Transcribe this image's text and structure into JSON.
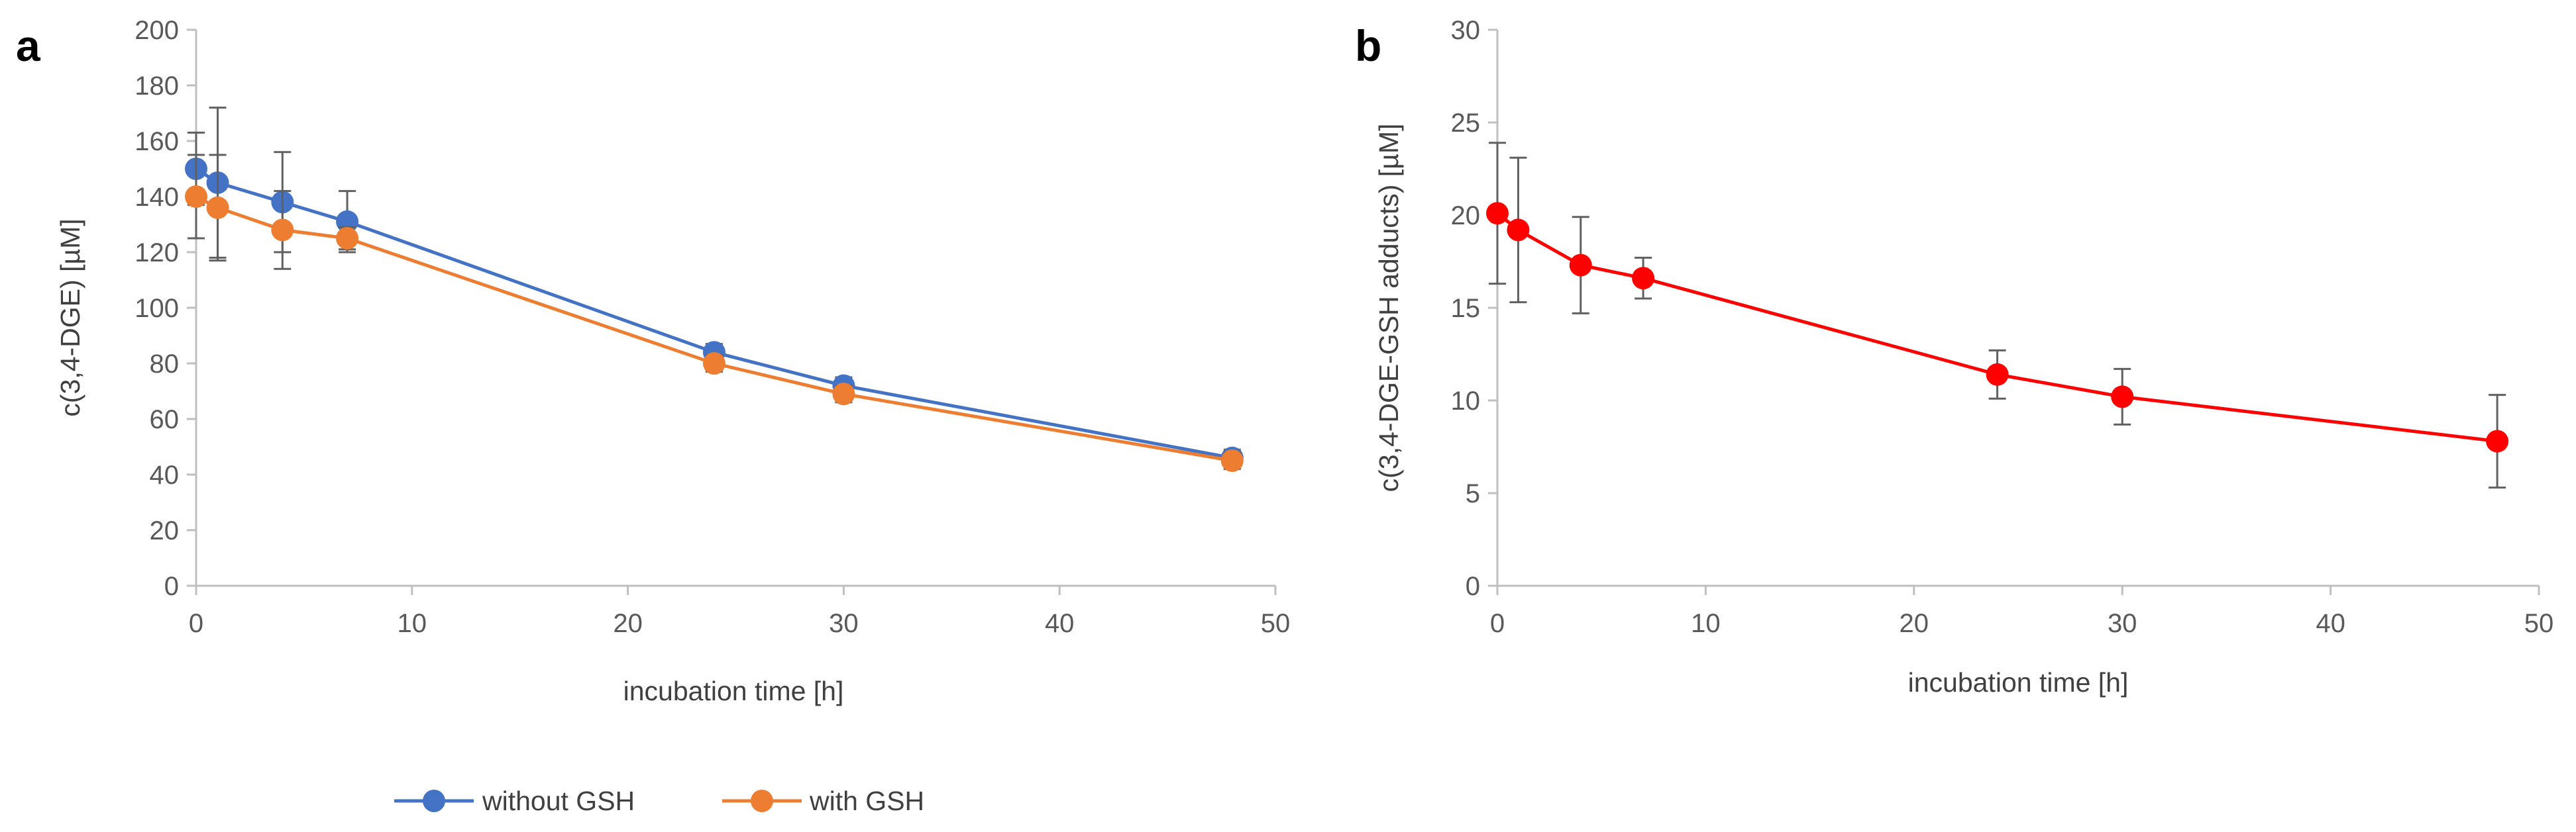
{
  "chart_data": [
    {
      "panel_label": "a",
      "type": "line",
      "xlabel": "incubation time [h]",
      "ylabel": "c(3,4-DGE) [µM]",
      "xlim": [
        0,
        50
      ],
      "ylim": [
        0,
        200
      ],
      "xticks": [
        "0",
        "10",
        "20",
        "30",
        "40",
        "50"
      ],
      "yticks": [
        "0",
        "20",
        "40",
        "60",
        "80",
        "100",
        "120",
        "140",
        "160",
        "180",
        "200"
      ],
      "legend_position": "bottom",
      "series": [
        {
          "name": "without GSH",
          "color": "#4472C4",
          "x": [
            0,
            1,
            4,
            7,
            24,
            30,
            48
          ],
          "y": [
            150,
            145,
            138,
            131,
            84,
            72,
            46
          ],
          "err": [
            13,
            27,
            18,
            11,
            3,
            3,
            3
          ]
        },
        {
          "name": "with GSH",
          "color": "#ED7D31",
          "x": [
            0,
            1,
            4,
            7,
            24,
            30,
            48
          ],
          "y": [
            140,
            136,
            128,
            125,
            80,
            69,
            45
          ],
          "err": [
            15,
            19,
            14,
            4,
            3,
            3,
            3
          ]
        }
      ]
    },
    {
      "panel_label": "b",
      "type": "line",
      "xlabel": "incubation time [h]",
      "ylabel": "c(3,4-DGE-GSH adducts) [µM]",
      "xlim": [
        0,
        50
      ],
      "ylim": [
        0,
        30
      ],
      "xticks": [
        "0",
        "10",
        "20",
        "30",
        "40",
        "50"
      ],
      "yticks": [
        "0",
        "5",
        "10",
        "15",
        "20",
        "25",
        "30"
      ],
      "series": [
        {
          "name": "3,4-DGE-GSH adducts",
          "color": "#FF0000",
          "x": [
            0,
            1,
            4,
            7,
            24,
            30,
            48
          ],
          "y": [
            20.1,
            19.2,
            17.3,
            16.6,
            11.4,
            10.2,
            7.8
          ],
          "err": [
            3.8,
            3.9,
            2.6,
            1.1,
            1.3,
            1.5,
            2.5
          ]
        }
      ]
    }
  ]
}
